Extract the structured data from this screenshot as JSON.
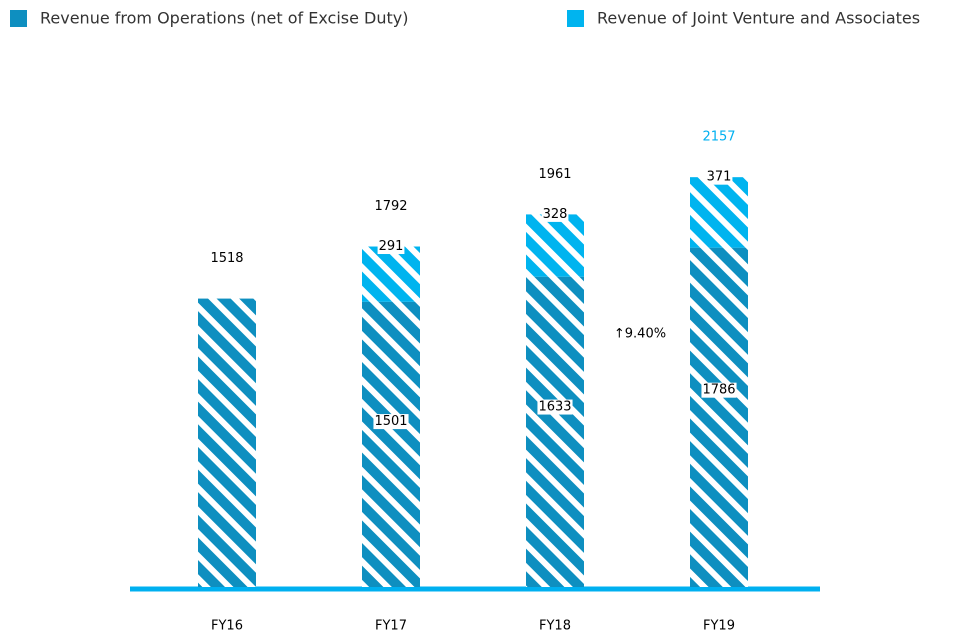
{
  "chart_data": {
    "type": "stacked_bar",
    "categories": [
      "FY16",
      "FY17",
      "FY18",
      "FY19"
    ],
    "series": [
      {
        "name": "Revenue from Operations (net of Excise Duty)",
        "color": "#0e8fc0",
        "values": [
          1518,
          1501,
          1633,
          1786
        ],
        "value_labels": [
          null,
          "1501",
          "1633",
          "1786"
        ]
      },
      {
        "name": "Revenue of Joint Venture and Associates",
        "color": "#00b4ef",
        "values": [
          null,
          291,
          328,
          371
        ]
      }
    ],
    "totals": [
      1518,
      1792,
      1961,
      2157
    ],
    "total_label_colors": [
      "#000000",
      "#000000",
      "#000000",
      "#00b0f0"
    ],
    "annotation": "↑9.40%",
    "ylim": [
      0,
      2300
    ]
  }
}
